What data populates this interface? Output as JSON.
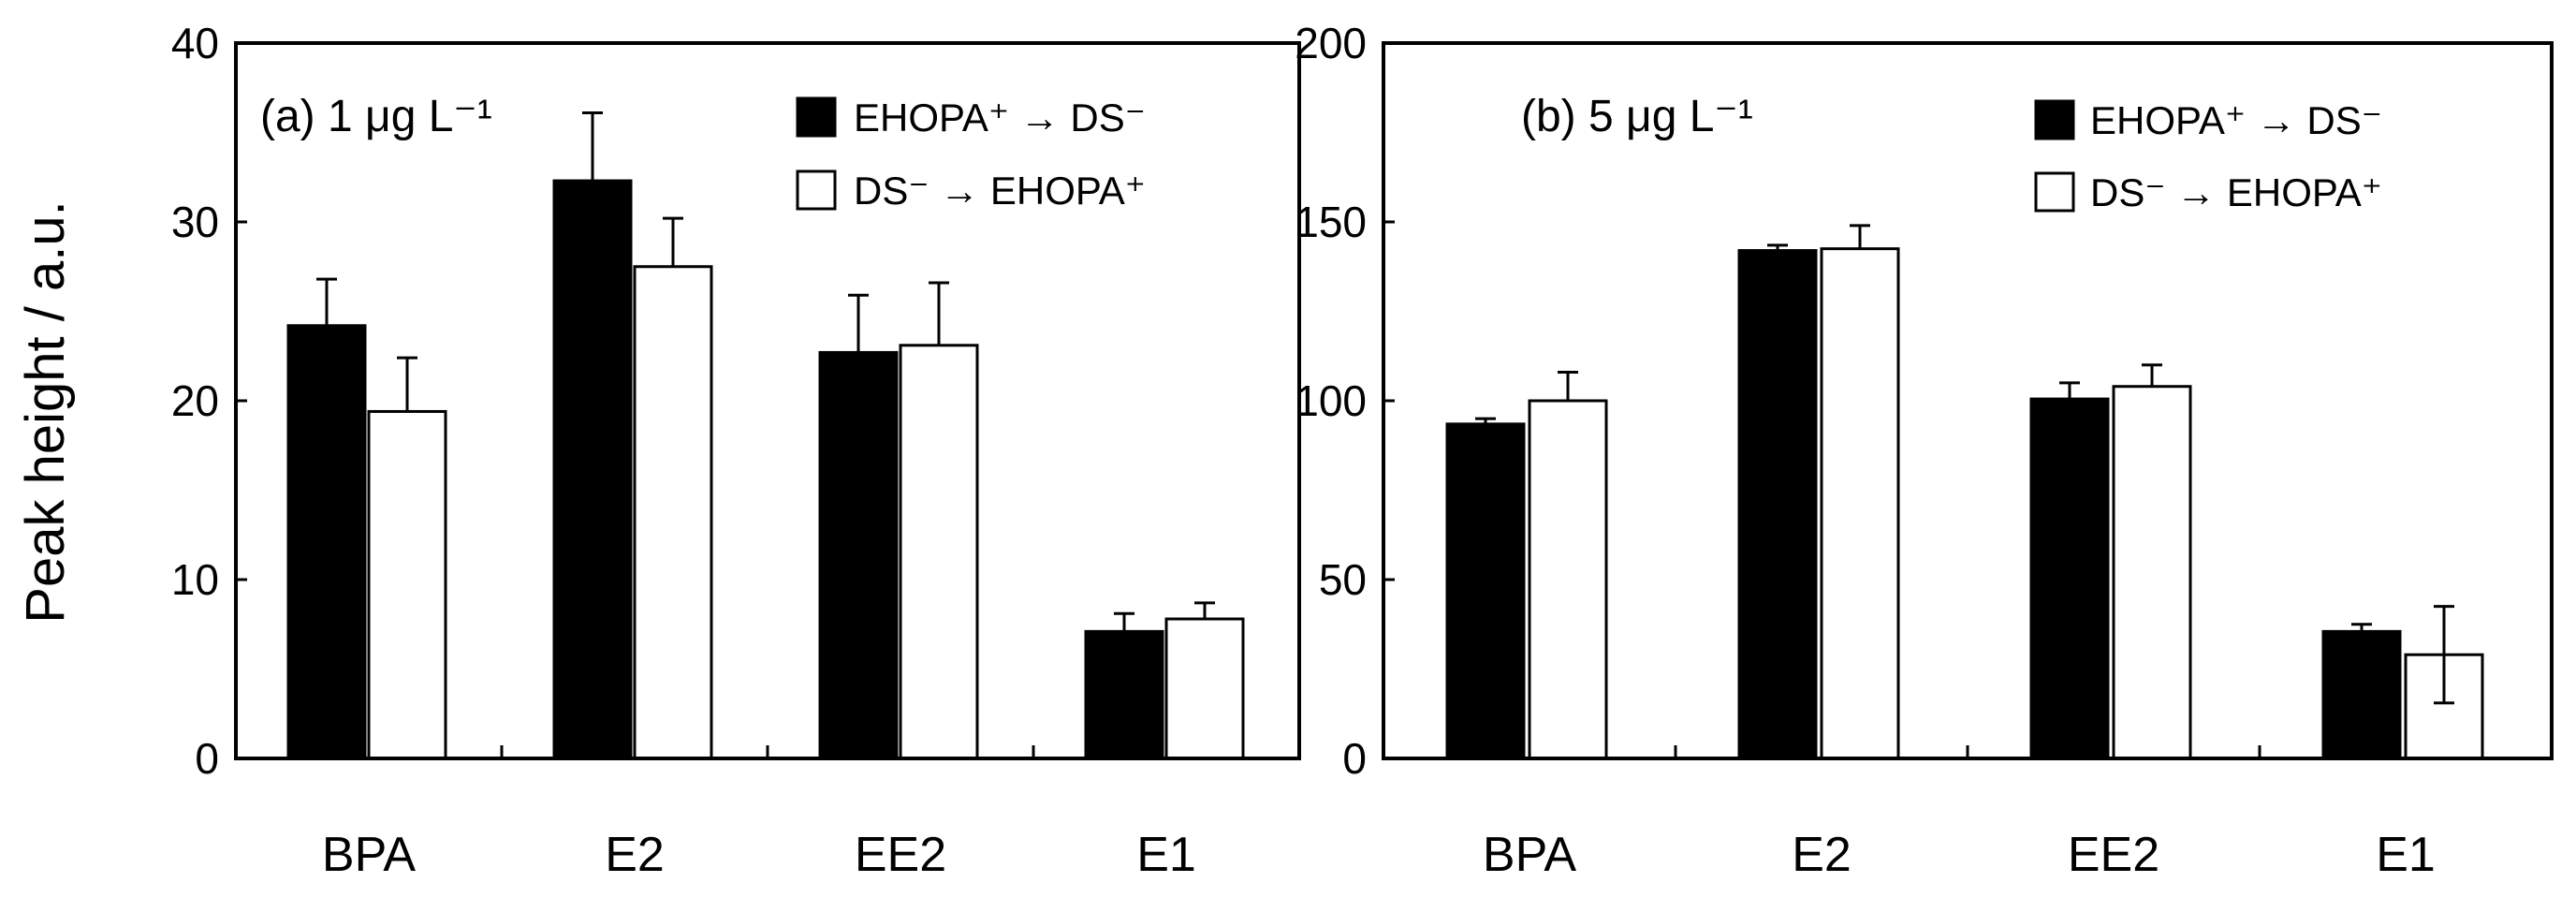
{
  "figure": {
    "ylabel": "Peak height / a.u."
  },
  "colors": {
    "filled": "#000000",
    "hollow": "#ffffff",
    "stroke": "#000000"
  },
  "chart_data": [
    {
      "type": "bar",
      "panel_label": "(a) 1 μg L⁻¹",
      "categories": [
        "BPA",
        "E2",
        "EE2",
        "E1"
      ],
      "ylim": [
        0,
        40
      ],
      "yticks": [
        "0",
        "10",
        "20",
        "30",
        "40"
      ],
      "ylabel": "Peak height / a.u.",
      "legend_position": "top-right",
      "series": [
        {
          "name": "EHOPA⁺ → DS⁻",
          "style": "filled",
          "values": [
            24.2,
            32.3,
            22.7,
            7.1
          ],
          "errors": [
            2.6,
            3.8,
            3.2,
            1.0
          ]
        },
        {
          "name": "DS⁻ → EHOPA⁺",
          "style": "hollow",
          "values": [
            19.4,
            27.5,
            23.1,
            7.8
          ],
          "errors": [
            3.0,
            2.7,
            3.5,
            0.9
          ]
        }
      ]
    },
    {
      "type": "bar",
      "panel_label": "(b) 5 μg L⁻¹",
      "categories": [
        "BPA",
        "E2",
        "EE2",
        "E1"
      ],
      "ylim": [
        0,
        200
      ],
      "yticks": [
        "0",
        "50",
        "100",
        "150",
        "200"
      ],
      "ylabel": "",
      "legend_position": "top-right",
      "series": [
        {
          "name": "EHOPA⁺ → DS⁻",
          "style": "filled",
          "values": [
            93.5,
            142.0,
            100.5,
            35.5
          ],
          "errors": [
            1.5,
            1.5,
            4.5,
            2.0
          ]
        },
        {
          "name": "DS⁻ → EHOPA⁺",
          "style": "hollow",
          "values": [
            100.0,
            142.5,
            104.0,
            29.0
          ],
          "errors": [
            8.0,
            6.5,
            6.0,
            13.5
          ]
        }
      ]
    }
  ]
}
